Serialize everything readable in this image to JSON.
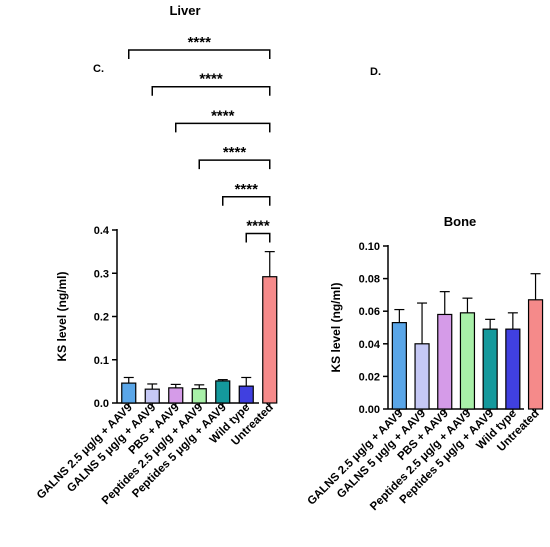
{
  "chart_data": [
    {
      "type": "bar",
      "panel_label": "C.",
      "title": "Liver",
      "ylabel": "KS level (ng/ml)",
      "xlabel": "",
      "ylim": [
        0,
        0.4
      ],
      "yticks": [
        "0.0",
        "0.1",
        "0.2",
        "0.3",
        "0.4"
      ],
      "categories": [
        "GALNS 2.5 μg/g + AAV9",
        "GALNS 5 μg/g + AAV9",
        "PBS + AAV9",
        "Peptides 2.5 μg/g + AAV9",
        "Peptides 5 μg/g + AAV9",
        "Wild type",
        "Untreated"
      ],
      "values": [
        0.046,
        0.032,
        0.035,
        0.033,
        0.051,
        0.039,
        0.292
      ],
      "errors": [
        0.013,
        0.012,
        0.008,
        0.009,
        0.003,
        0.02,
        0.058
      ],
      "colors": [
        "#5aa6e8",
        "#c5c8f5",
        "#d59be8",
        "#a8f0a8",
        "#14999c",
        "#4040e0",
        "#f58a8a"
      ],
      "significance": [
        {
          "from": 0,
          "to": 6,
          "label": "****"
        },
        {
          "from": 1,
          "to": 6,
          "label": "****"
        },
        {
          "from": 2,
          "to": 6,
          "label": "****"
        },
        {
          "from": 3,
          "to": 6,
          "label": "****"
        },
        {
          "from": 4,
          "to": 6,
          "label": "****"
        },
        {
          "from": 5,
          "to": 6,
          "label": "****"
        }
      ]
    },
    {
      "type": "bar",
      "panel_label": "D.",
      "title": "Bone",
      "ylabel": "KS level (ng/ml)",
      "xlabel": "",
      "ylim": [
        0,
        0.1
      ],
      "yticks": [
        "0.00",
        "0.02",
        "0.04",
        "0.06",
        "0.08",
        "0.10"
      ],
      "categories": [
        "GALNS 2.5 μg/g + AAV9",
        "GALNS 5 μg/g + AAV9",
        "PBS + AAV9",
        "Peptides 2.5 μg/g + AAV9",
        "Peptides 5 μg/g + AAV9",
        "Wild type",
        "Untreated"
      ],
      "values": [
        0.053,
        0.04,
        0.058,
        0.059,
        0.049,
        0.049,
        0.067
      ],
      "errors": [
        0.008,
        0.025,
        0.014,
        0.009,
        0.006,
        0.01,
        0.016
      ],
      "colors": [
        "#5aa6e8",
        "#c5c8f5",
        "#d59be8",
        "#a8f0a8",
        "#14999c",
        "#4040e0",
        "#f58a8a"
      ],
      "significance": []
    }
  ]
}
